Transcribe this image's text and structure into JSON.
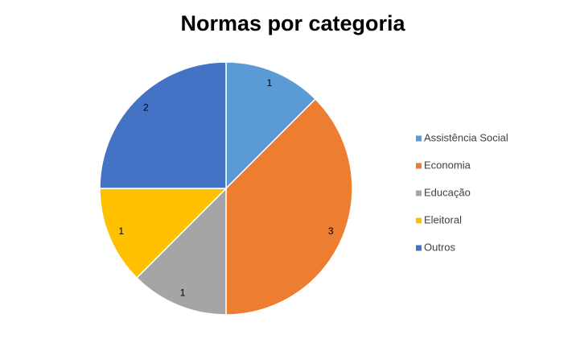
{
  "chart_data": {
    "type": "pie",
    "title": "Normas por categoria",
    "categories": [
      "Assistência Social",
      "Economia",
      "Educação",
      "Eleitoral",
      "Outros"
    ],
    "values": [
      1,
      3,
      1,
      1,
      2
    ],
    "colors": [
      "#5b9bd5",
      "#ed7d31",
      "#a5a5a5",
      "#ffc000",
      "#4472c4"
    ],
    "legend": "right"
  }
}
